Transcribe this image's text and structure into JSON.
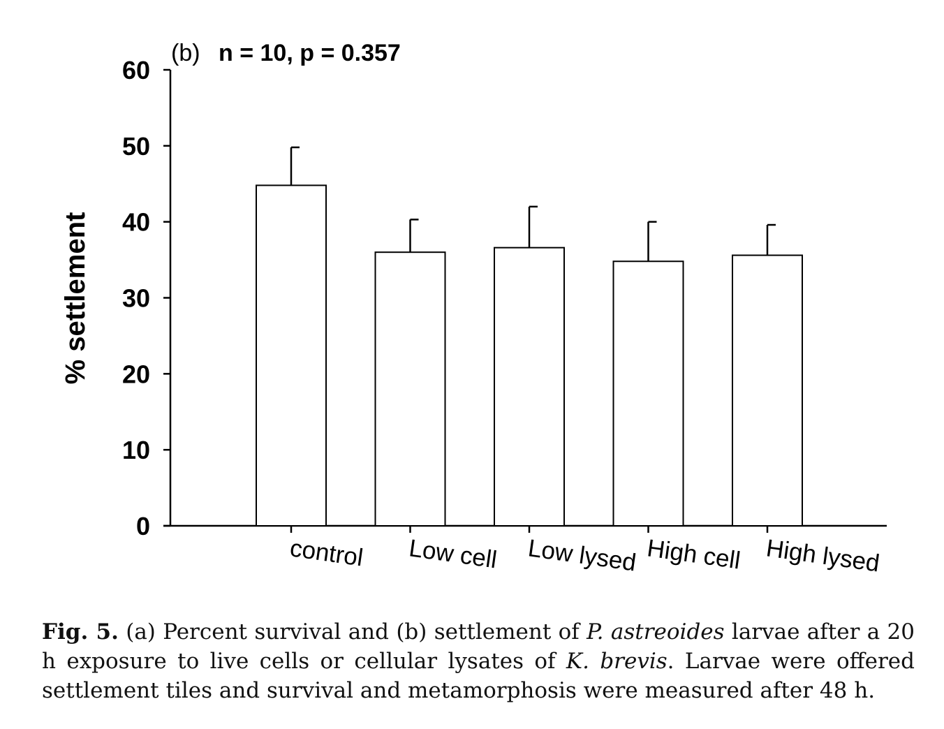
{
  "chart_data": {
    "type": "bar",
    "panel_label": "(b)",
    "annotation": "n = 10, p = 0.357",
    "categories": [
      "control",
      "Low cell",
      "Low lysed",
      "High cell",
      "High lysed"
    ],
    "series": [
      {
        "values": [
          44.8,
          36.0,
          36.6,
          34.8,
          35.6
        ],
        "error_upper": [
          49.8,
          40.3,
          42.0,
          40.0,
          39.6
        ]
      }
    ],
    "xlabel": "",
    "ylabel": "% settlement",
    "ylim": [
      0,
      60
    ],
    "yticks": [
      0,
      10,
      20,
      30,
      40,
      50,
      60
    ],
    "grid": false,
    "bar_fill": "#ffffff",
    "bar_stroke": "#000000"
  },
  "caption": {
    "label": "Fig. 5.",
    "t1": " (a) Percent survival and (b) settlement of ",
    "species1": "P. astreoides",
    "t2": " larvae after a 20 h exposure to live cells or cellular lysates of ",
    "species2": "K. brevis",
    "t3": ". Larvae were offered settlement tiles and survival and metamorphosis were measured after 48 h."
  }
}
